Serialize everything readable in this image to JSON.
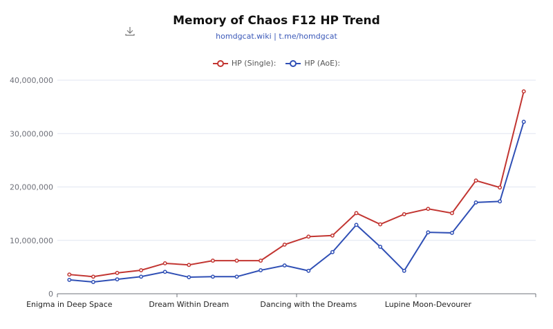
{
  "toolbar": {
    "download_icon": "download-icon"
  },
  "chart_data": {
    "type": "line",
    "title": "Memory of Chaos F12 HP Trend",
    "subtitle": "homdgcat.wiki | t.me/homdgcat",
    "categories": [
      "Enigma in Deep Space",
      "",
      "",
      "",
      "",
      "Dream Within Dream",
      "",
      "",
      "",
      "",
      "Dancing with the Dreams",
      "",
      "",
      "",
      "",
      "Lupine Moon-Devourer",
      "",
      "",
      "",
      ""
    ],
    "ylim": [
      0,
      40000000
    ],
    "yticks": [
      "0",
      "10,000,000",
      "20,000,000",
      "30,000,000",
      "40,000,000"
    ],
    "grid": true,
    "legend_position": "top",
    "series": [
      {
        "name": "HP (Single):",
        "color": "#c23531",
        "values": [
          3600000,
          3200000,
          3900000,
          4400000,
          5700000,
          5400000,
          6200000,
          6200000,
          6200000,
          9200000,
          10700000,
          10900000,
          15100000,
          13000000,
          14900000,
          15900000,
          15100000,
          21200000,
          19900000,
          37900000
        ]
      },
      {
        "name": "HP (AoE):",
        "color": "#2f4fb5",
        "values": [
          2600000,
          2200000,
          2700000,
          3200000,
          4100000,
          3100000,
          3200000,
          3200000,
          4400000,
          5300000,
          4300000,
          7800000,
          12900000,
          8800000,
          4300000,
          11500000,
          11400000,
          17100000,
          17300000,
          32200000
        ]
      }
    ]
  }
}
